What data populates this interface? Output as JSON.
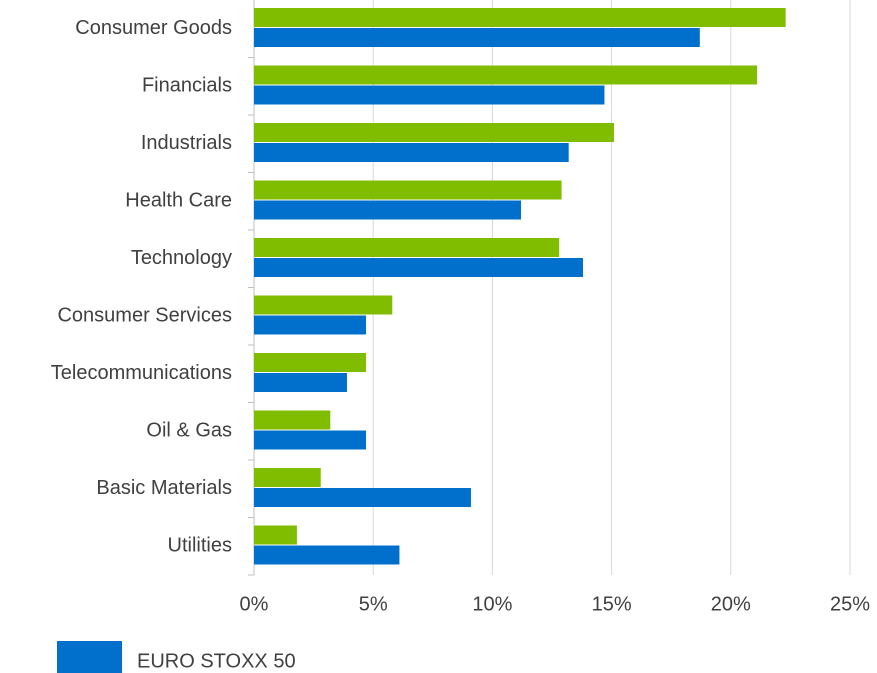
{
  "chart_data": {
    "type": "hbar",
    "categories": [
      "Consumer Goods",
      "Financials",
      "Industrials",
      "Health Care",
      "Technology",
      "Consumer Services",
      "Telecommunications",
      "Oil & Gas",
      "Basic Materials",
      "Utilities"
    ],
    "series": [
      {
        "color": "#80bc00",
        "values": [
          22.3,
          21.1,
          15.1,
          12.9,
          12.8,
          5.8,
          4.7,
          3.2,
          2.8,
          1.8
        ]
      },
      {
        "name": "EURO STOXX 50",
        "color": "#0070cc",
        "values": [
          18.7,
          14.7,
          13.2,
          11.2,
          13.8,
          4.7,
          3.9,
          4.7,
          9.1,
          6.1
        ]
      }
    ],
    "xlim": [
      0,
      25
    ],
    "xticks": [
      {
        "value": 0,
        "label": "0%"
      },
      {
        "value": 5,
        "label": "5%"
      },
      {
        "value": 10,
        "label": "10%"
      },
      {
        "value": 15,
        "label": "15%"
      },
      {
        "value": 20,
        "label": "20%"
      },
      {
        "value": 25,
        "label": "25%"
      }
    ],
    "grid": true,
    "legend": "bottom-left"
  }
}
